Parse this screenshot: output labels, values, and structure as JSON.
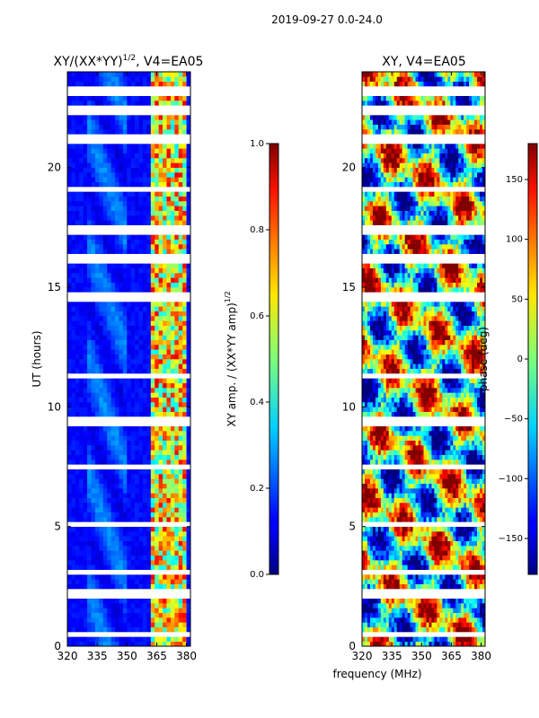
{
  "suptitle": "2019-09-27 0.0-24.0",
  "xlabel_shared": "frequency (MHz)",
  "colors": {
    "axis": "#000000",
    "background": "#ffffff"
  },
  "chart_data": [
    {
      "type": "heatmap",
      "title_text": "XY/(XX*YY)",
      "title_sup": "1/2",
      "title_suffix": ", V4=EA05",
      "ylabel": "UT (hours)",
      "xlim": [
        320,
        382
      ],
      "ylim": [
        0,
        24
      ],
      "xticks": [
        320,
        335,
        350,
        365,
        380
      ],
      "yticks": [
        0,
        5,
        10,
        15,
        20
      ],
      "colormap": "jet",
      "description_of_values": "amplitude mostly low (~0.05-0.15) with bright bands near 362-380 MHz",
      "bright_channels_MHz": [
        363,
        366,
        369,
        372,
        375,
        378
      ],
      "gaps_hours": [
        0.5,
        2.2,
        3.1,
        5.1,
        7.5,
        9.4,
        11.3,
        14.6,
        16.2,
        17.4,
        19.1,
        21.2,
        22.4,
        23.2
      ],
      "colorbar": {
        "label_text": "XY amp. / (XX*YY amp)",
        "label_sup": "1/2",
        "range": [
          0.0,
          1.0
        ],
        "ticks": [
          "0.0",
          "0.2",
          "0.4",
          "0.6",
          "0.8",
          "1.0"
        ]
      }
    },
    {
      "type": "heatmap",
      "title_text": "XY, V4=EA05",
      "xlim": [
        320,
        382
      ],
      "ylim": [
        0,
        24
      ],
      "xticks": [
        320,
        335,
        350,
        365,
        380
      ],
      "yticks": [
        0,
        5,
        10,
        15,
        20
      ],
      "colormap": "jet",
      "description_of_values": "phase varying across full range -180 to 180 deg",
      "colorbar": {
        "label_text": "phase (deg)",
        "range": [
          -180,
          180
        ],
        "ticks": [
          "150",
          "100",
          "50",
          "0",
          "−50",
          "−100",
          "−150"
        ],
        "tick_values": [
          150,
          100,
          50,
          0,
          -50,
          -100,
          -150
        ]
      }
    }
  ]
}
